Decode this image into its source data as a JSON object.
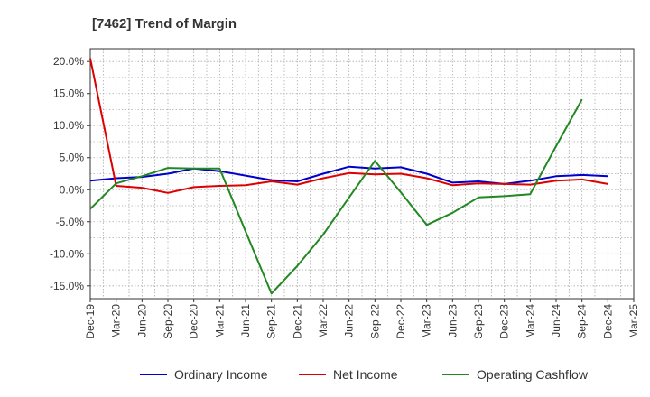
{
  "chart_data": {
    "type": "line",
    "title": "[7462]  Trend of Margin",
    "xlabel": "",
    "ylabel": "",
    "categories": [
      "Dec-19",
      "Mar-20",
      "Jun-20",
      "Sep-20",
      "Dec-20",
      "Mar-21",
      "Jun-21",
      "Sep-21",
      "Dec-21",
      "Mar-22",
      "Jun-22",
      "Sep-22",
      "Dec-22",
      "Mar-23",
      "Jun-23",
      "Sep-23",
      "Dec-23",
      "Mar-24",
      "Jun-24",
      "Sep-24",
      "Dec-24",
      "Mar-25"
    ],
    "y_ticks": [
      "20.0%",
      "15.0%",
      "10.0%",
      "5.0%",
      "0.0%",
      "-5.0%",
      "-10.0%",
      "-15.0%"
    ],
    "y_tick_values": [
      20,
      15,
      10,
      5,
      0,
      -5,
      -10,
      -15
    ],
    "ylim": [
      -17,
      22
    ],
    "grid": true,
    "legend_position": "bottom",
    "series": [
      {
        "name": "Ordinary Income",
        "color": "#0000cc",
        "values": [
          1.4,
          1.8,
          2.0,
          2.5,
          3.3,
          2.9,
          2.2,
          1.5,
          1.3,
          2.5,
          3.6,
          3.3,
          3.5,
          2.5,
          1.1,
          1.3,
          0.9,
          1.4,
          2.1,
          2.3,
          2.1,
          null
        ]
      },
      {
        "name": "Net Income",
        "color": "#dd0000",
        "values": [
          20.5,
          0.6,
          0.3,
          -0.5,
          0.4,
          0.6,
          0.7,
          1.3,
          0.8,
          1.8,
          2.6,
          2.4,
          2.5,
          1.8,
          0.7,
          1.0,
          0.9,
          0.8,
          1.4,
          1.6,
          0.9,
          null
        ]
      },
      {
        "name": "Operating Cashflow",
        "color": "#228822",
        "values": [
          -3.0,
          1.0,
          2.1,
          3.4,
          3.3,
          3.3,
          -6.5,
          -16.2,
          -11.9,
          -7.0,
          -1.2,
          4.5,
          -0.4,
          -5.5,
          -3.6,
          -1.2,
          -1.0,
          -0.7,
          6.8,
          14.1,
          null,
          null
        ]
      }
    ]
  }
}
